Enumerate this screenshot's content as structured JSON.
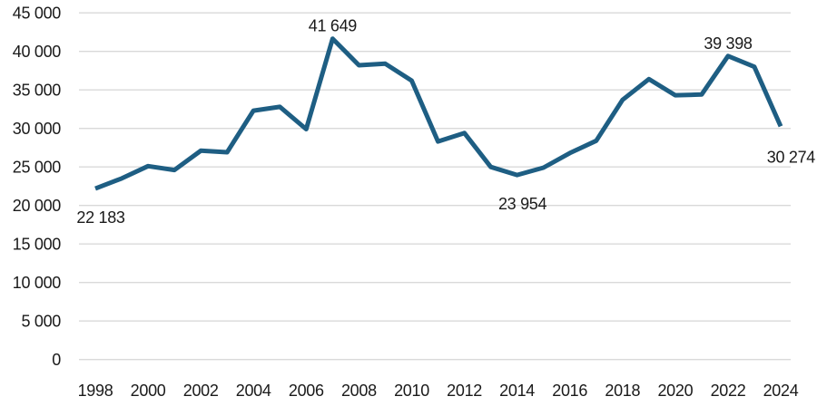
{
  "chart_data": {
    "type": "line",
    "title": "",
    "xlabel": "",
    "ylabel": "",
    "x": [
      1998,
      1999,
      2000,
      2001,
      2002,
      2003,
      2004,
      2005,
      2006,
      2007,
      2008,
      2009,
      2010,
      2011,
      2012,
      2013,
      2014,
      2015,
      2016,
      2017,
      2018,
      2019,
      2020,
      2021,
      2022,
      2023,
      2024
    ],
    "values": [
      22183,
      23500,
      25100,
      24600,
      27100,
      26900,
      32300,
      32800,
      29900,
      41649,
      38200,
      38400,
      36200,
      28300,
      29400,
      25000,
      23954,
      24900,
      26800,
      28400,
      33700,
      36400,
      34300,
      34400,
      39398,
      38000,
      30274
    ],
    "x_tick_labels": [
      "1998",
      "2000",
      "2002",
      "2004",
      "2006",
      "2008",
      "2010",
      "2012",
      "2014",
      "2016",
      "2018",
      "2020",
      "2022",
      "2024"
    ],
    "y_tick_values": [
      45000,
      40000,
      35000,
      30000,
      25000,
      20000,
      15000,
      10000,
      5000,
      0
    ],
    "y_tick_labels": [
      "45 000",
      "40 000",
      "35 000",
      "30 000",
      "25 000",
      "20 000",
      "15 000",
      "10 000",
      "5 000",
      "0"
    ],
    "ylim": [
      0,
      45000
    ],
    "grid": "horizontal-only",
    "legend": "none",
    "point_labels": [
      {
        "x": 1998,
        "text": "22 183",
        "placement": "below"
      },
      {
        "x": 2007,
        "text": "41 649",
        "placement": "above"
      },
      {
        "x": 2014,
        "text": "23 954",
        "placement": "below"
      },
      {
        "x": 2022,
        "text": "39 398",
        "placement": "above"
      },
      {
        "x": 2024,
        "text": "30 274",
        "placement": "end"
      }
    ],
    "colors": {
      "line": "#1e5e83",
      "grid": "#d9d9d9",
      "text": "#1a1a1a",
      "background": "#ffffff"
    }
  }
}
